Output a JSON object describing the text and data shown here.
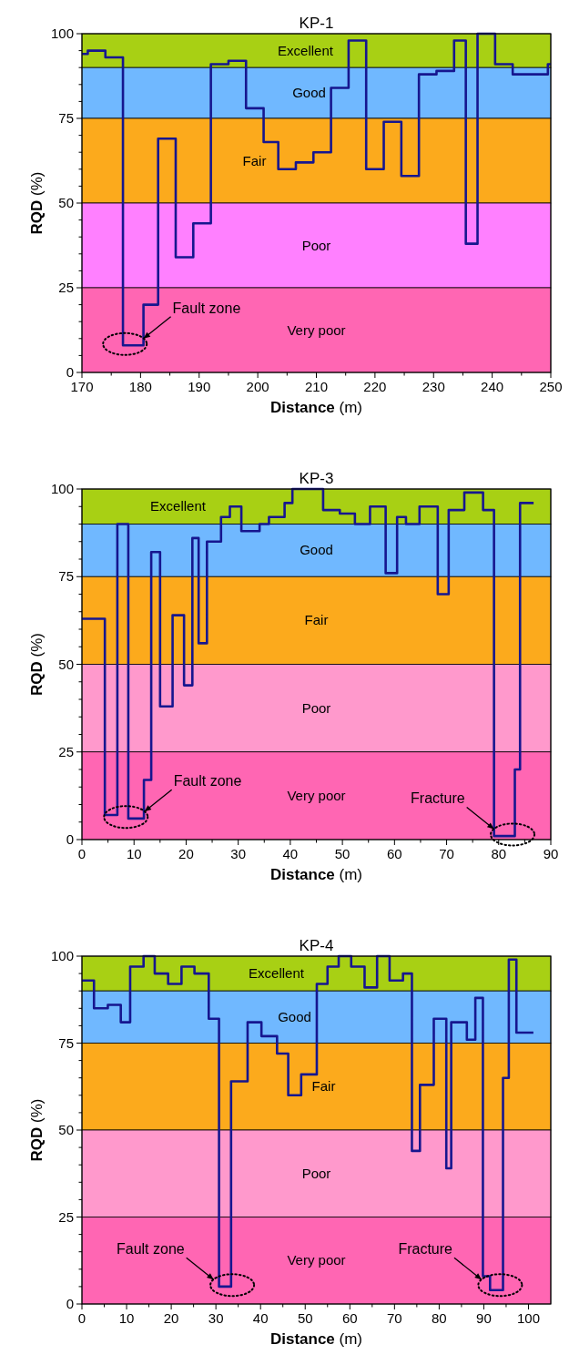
{
  "chart_data": [
    {
      "type": "step",
      "title": "KP-1",
      "xlabel": "Distance (m)",
      "ylabel": "RQD (%)",
      "xlim": [
        170,
        250
      ],
      "xticks": [
        170,
        {
          "value": 175,
          "label": null
        },
        180,
        {
          "value": 185,
          "label": null
        },
        190,
        {
          "value": 195,
          "label": null
        },
        200,
        {
          "value": 205,
          "label": null
        },
        210,
        {
          "value": 215,
          "label": null
        },
        220,
        {
          "value": 225,
          "label": null
        },
        230,
        {
          "value": 235,
          "label": null
        },
        240,
        {
          "value": 245,
          "label": null
        },
        250
      ],
      "ylim": [
        0,
        100
      ],
      "yticks": [
        0,
        {
          "value": 5,
          "label": null
        },
        {
          "value": 10,
          "label": null
        },
        {
          "value": 15,
          "label": null
        },
        {
          "value": 20,
          "label": null
        },
        25,
        {
          "value": 30,
          "label": null
        },
        {
          "value": 35,
          "label": null
        },
        {
          "value": 40,
          "label": null
        },
        {
          "value": 45,
          "label": null
        },
        50,
        {
          "value": 55,
          "label": null
        },
        {
          "value": 60,
          "label": null
        },
        {
          "value": 65,
          "label": null
        },
        {
          "value": 70,
          "label": null
        },
        75,
        {
          "value": 80,
          "label": null
        },
        {
          "value": 85,
          "label": null
        },
        {
          "value": 90,
          "label": null
        },
        {
          "value": 95,
          "label": null
        },
        100
      ],
      "bands": [
        {
          "axis": "y",
          "from": 90,
          "to": 100,
          "label": "Excellent",
          "color": "#a8d014"
        },
        {
          "axis": "y",
          "from": 75,
          "to": 90,
          "label": "Good",
          "color": "#70b8ff"
        },
        {
          "axis": "y",
          "from": 50,
          "to": 75,
          "label": "Fair",
          "color": "#fcaa1c"
        },
        {
          "axis": "y",
          "from": 25,
          "to": 50,
          "label": "Poor",
          "color": "#ff80ff"
        },
        {
          "axis": "y",
          "from": 0,
          "to": 25,
          "label": "Very poor",
          "color": "#ff66b3"
        }
      ],
      "series": [
        {
          "color": "#16168f",
          "x": [
            170,
            171,
            174,
            177,
            180.5,
            183,
            186,
            189,
            192,
            195,
            198,
            201,
            203.5,
            206.5,
            209.5,
            212.5,
            215.5,
            218.5,
            221.5,
            224.5,
            227.5,
            230.5,
            233.5,
            235.5,
            237.5,
            240.5,
            243.5,
            249.5,
            250
          ],
          "values": [
            94,
            95,
            93,
            8,
            20,
            69,
            34,
            44,
            91,
            92,
            78,
            68,
            60,
            62,
            65,
            84,
            98,
            60,
            74,
            58,
            88,
            89,
            98,
            38,
            100,
            91,
            88,
            91,
            91
          ]
        }
      ],
      "annotations": [
        {
          "text": "Fault zone",
          "x": 180.5,
          "y": 10
        }
      ]
    },
    {
      "type": "step",
      "title": "KP-3",
      "xlabel": "Distance (m)",
      "ylabel": "RQD (%)",
      "xlim": [
        0,
        90
      ],
      "xticks": [
        0,
        {
          "value": 5,
          "label": null
        },
        10,
        {
          "value": 15,
          "label": null
        },
        20,
        {
          "value": 25,
          "label": null
        },
        30,
        {
          "value": 35,
          "label": null
        },
        40,
        {
          "value": 45,
          "label": null
        },
        50,
        {
          "value": 55,
          "label": null
        },
        60,
        {
          "value": 65,
          "label": null
        },
        70,
        {
          "value": 75,
          "label": null
        },
        80,
        {
          "value": 85,
          "label": null
        },
        90
      ],
      "ylim": [
        0,
        100
      ],
      "yticks": [
        0,
        {
          "value": 5,
          "label": null
        },
        {
          "value": 10,
          "label": null
        },
        {
          "value": 15,
          "label": null
        },
        {
          "value": 20,
          "label": null
        },
        25,
        {
          "value": 30,
          "label": null
        },
        {
          "value": 35,
          "label": null
        },
        {
          "value": 40,
          "label": null
        },
        {
          "value": 45,
          "label": null
        },
        50,
        {
          "value": 55,
          "label": null
        },
        {
          "value": 60,
          "label": null
        },
        {
          "value": 65,
          "label": null
        },
        {
          "value": 70,
          "label": null
        },
        75,
        {
          "value": 80,
          "label": null
        },
        {
          "value": 85,
          "label": null
        },
        {
          "value": 90,
          "label": null
        },
        {
          "value": 95,
          "label": null
        },
        100
      ],
      "bands": [
        {
          "axis": "y",
          "from": 90,
          "to": 100,
          "label": "Excellent",
          "color": "#a8d014"
        },
        {
          "axis": "y",
          "from": 75,
          "to": 90,
          "label": "Good",
          "color": "#70b8ff"
        },
        {
          "axis": "y",
          "from": 50,
          "to": 75,
          "label": "Fair",
          "color": "#fcaa1c"
        },
        {
          "axis": "y",
          "from": 25,
          "to": 50,
          "label": "Poor",
          "color": "#ff99cc"
        },
        {
          "axis": "y",
          "from": 0,
          "to": 25,
          "label": "Very poor",
          "color": "#ff66b3"
        }
      ],
      "series": [
        {
          "color": "#16168f",
          "x": [
            0,
            4.4,
            6.8,
            8.9,
            11.9,
            13.3,
            15,
            17.4,
            19.6,
            21.2,
            22.4,
            24,
            26.7,
            28.4,
            30.6,
            34.1,
            35.9,
            38.9,
            40.4,
            46.3,
            49.5,
            52.4,
            55.3,
            58.3,
            60.5,
            62.2,
            64.8,
            68.3,
            70.4,
            73.4,
            77,
            79.1,
            83.1,
            84.1,
            86.7
          ],
          "values": [
            63,
            7,
            90,
            6,
            17,
            82,
            38,
            64,
            44,
            86,
            56,
            85,
            92,
            95,
            88,
            90,
            92,
            96,
            100,
            94,
            93,
            90,
            95,
            76,
            92,
            90,
            95,
            70,
            94,
            99,
            94,
            1,
            20,
            96,
            96
          ]
        }
      ],
      "annotations": [
        {
          "text": "Fault zone",
          "x": 12,
          "y": 8
        },
        {
          "text": "Fracture",
          "x": 79.1,
          "y": 3
        }
      ]
    },
    {
      "type": "step",
      "title": "KP-4",
      "xlabel": "Distance (m)",
      "ylabel": "RQD (%)",
      "xlim": [
        0,
        105
      ],
      "xticks": [
        0,
        {
          "value": 5,
          "label": null
        },
        10,
        {
          "value": 15,
          "label": null
        },
        20,
        {
          "value": 25,
          "label": null
        },
        30,
        {
          "value": 35,
          "label": null
        },
        40,
        {
          "value": 45,
          "label": null
        },
        50,
        {
          "value": 55,
          "label": null
        },
        60,
        {
          "value": 65,
          "label": null
        },
        70,
        {
          "value": 75,
          "label": null
        },
        80,
        {
          "value": 85,
          "label": null
        },
        90,
        {
          "value": 95,
          "label": null
        },
        100
      ],
      "ylim": [
        0,
        100
      ],
      "yticks": [
        0,
        {
          "value": 5,
          "label": null
        },
        {
          "value": 10,
          "label": null
        },
        {
          "value": 15,
          "label": null
        },
        {
          "value": 20,
          "label": null
        },
        25,
        {
          "value": 30,
          "label": null
        },
        {
          "value": 35,
          "label": null
        },
        {
          "value": 40,
          "label": null
        },
        {
          "value": 45,
          "label": null
        },
        50,
        {
          "value": 55,
          "label": null
        },
        {
          "value": 60,
          "label": null
        },
        {
          "value": 65,
          "label": null
        },
        {
          "value": 70,
          "label": null
        },
        75,
        {
          "value": 80,
          "label": null
        },
        {
          "value": 85,
          "label": null
        },
        {
          "value": 90,
          "label": null
        },
        {
          "value": 95,
          "label": null
        },
        100
      ],
      "bands": [
        {
          "axis": "y",
          "from": 90,
          "to": 100,
          "label": "Excellent",
          "color": "#a8d014"
        },
        {
          "axis": "y",
          "from": 75,
          "to": 90,
          "label": "Good",
          "color": "#70b8ff"
        },
        {
          "axis": "y",
          "from": 50,
          "to": 75,
          "label": "Fair",
          "color": "#fcaa1c"
        },
        {
          "axis": "y",
          "from": 25,
          "to": 50,
          "label": "Poor",
          "color": "#ff99cc"
        },
        {
          "axis": "y",
          "from": 0,
          "to": 25,
          "label": "Very poor",
          "color": "#ff66b3"
        }
      ],
      "series": [
        {
          "color": "#16168f",
          "x": [
            0,
            2.7,
            5.8,
            8.7,
            10.8,
            13.8,
            16.3,
            19.3,
            22.3,
            25.2,
            28.4,
            30.7,
            33.4,
            37.1,
            40.2,
            43.7,
            46.2,
            49.1,
            52.6,
            55,
            57.5,
            60.3,
            63.3,
            66.1,
            68.9,
            71.9,
            73.9,
            75.7,
            78.8,
            81.6,
            82.7,
            86.2,
            88.1,
            89.8,
            91.4,
            94.3,
            95.6,
            97.3,
            101.1
          ],
          "values": [
            93,
            85,
            86,
            81,
            97,
            100,
            95,
            92,
            97,
            95,
            82,
            5,
            64,
            81,
            77,
            72,
            60,
            66,
            92,
            97,
            100,
            97,
            91,
            100,
            93,
            95,
            44,
            63,
            82,
            39,
            81,
            76,
            88,
            8,
            4,
            65,
            99,
            78,
            78
          ]
        }
      ],
      "annotations": [
        {
          "text": "Fault zone",
          "x": 29.5,
          "y": 7
        },
        {
          "text": "Fracture",
          "x": 89.5,
          "y": 7
        }
      ]
    }
  ]
}
